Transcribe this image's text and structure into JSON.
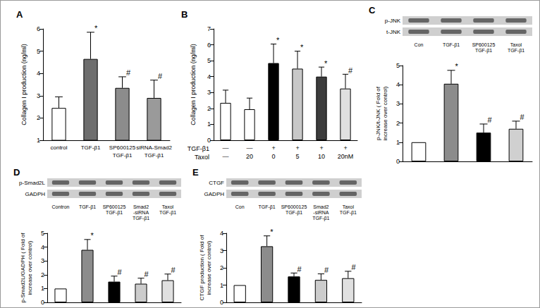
{
  "chart_data": [
    {
      "panel": "A",
      "type": "bar",
      "ylabel": "Collagen I production (ng/ml)",
      "categories": [
        "control",
        "TGF-β1",
        "SP600125\nTGF-β1",
        "siRNA-Smad2\nTGF-β1"
      ],
      "values": [
        2.45,
        4.65,
        3.35,
        2.9
      ],
      "errors": [
        0.5,
        1.2,
        0.5,
        0.8
      ],
      "annotations": [
        null,
        "*",
        "#",
        "#"
      ],
      "colors": [
        "#ffffff",
        "#6e6e6e",
        "#8c8c8c",
        "#9a9a9a"
      ],
      "ylim": [
        1,
        6
      ],
      "yticks": [
        1,
        2,
        3,
        4,
        5,
        6
      ],
      "grid": false
    },
    {
      "panel": "B",
      "type": "bar",
      "ylabel": "Collagen I production (ng/ml)",
      "x_rows": [
        {
          "name": "TGF-β1",
          "labels": [
            "—",
            "—",
            "+",
            "+",
            "+",
            "+"
          ]
        },
        {
          "name": "Taxol",
          "labels": [
            "—",
            "20",
            "0",
            "5",
            "10",
            "20nM"
          ]
        }
      ],
      "values": [
        2.35,
        1.95,
        4.85,
        4.5,
        4.0,
        3.25
      ],
      "errors": [
        0.8,
        0.7,
        1.2,
        1.1,
        0.6,
        0.9
      ],
      "annotations": [
        null,
        null,
        "*",
        "*",
        "*",
        "#"
      ],
      "colors": [
        "#ffffff",
        "#ffffff",
        "#000000",
        "#c8c8c8",
        "#3c3c3c",
        "#e0e0e0"
      ],
      "ylim": [
        0,
        7
      ],
      "yticks": [
        0,
        1,
        2,
        3,
        4,
        5,
        6,
        7
      ],
      "grid": false
    },
    {
      "panel": "C",
      "type": "bar",
      "blot": {
        "rows": [
          "p-JNK",
          "t-JNK"
        ],
        "lanes": [
          "Con",
          "TGF-β1",
          "SP600125\nTGF-β1",
          "Taxol\nTGF-β1"
        ]
      },
      "ylabel": "p-JNK/t-JNK ( Fold of\nincrease over control)",
      "categories": [
        null,
        null,
        null,
        null
      ],
      "values": [
        1,
        4.05,
        1.5,
        1.7
      ],
      "errors": [
        null,
        0.7,
        0.45,
        0.4
      ],
      "annotations": [
        null,
        "*",
        "#",
        "#"
      ],
      "colors": [
        "#ffffff",
        "#8c8c8c",
        "#000000",
        "#d0d0d0"
      ],
      "ylim": [
        0,
        5
      ],
      "yticks": [
        0,
        1,
        2,
        3,
        4,
        5
      ],
      "grid": false,
      "tick_labels": "y"
    },
    {
      "panel": "D",
      "type": "bar",
      "blot": {
        "rows": [
          "p-Smad2L",
          "GADPH"
        ],
        "lanes": [
          "Contron",
          "TGF-β1",
          "SP600125\nTGF-β1",
          "Smad2\n-siRNA\nTGF-β1",
          "Taxol\nTGF-β1"
        ]
      },
      "ylabel": "p-Smad2L/GADPH ( Fold of\nincrease over control)",
      "categories": [
        null,
        null,
        null,
        null,
        null
      ],
      "values": [
        1,
        3.8,
        1.5,
        1.35,
        1.6
      ],
      "errors": [
        null,
        0.75,
        0.4,
        0.4,
        0.45
      ],
      "annotations": [
        null,
        "*",
        "#",
        "#",
        "#"
      ],
      "colors": [
        "#ffffff",
        "#8c8c8c",
        "#000000",
        "#cccccc",
        "#e0e0e0"
      ],
      "ylim": [
        0,
        5
      ],
      "yticks": [
        0,
        1,
        2,
        3,
        4,
        5
      ],
      "grid": false,
      "tick_labels": "y"
    },
    {
      "panel": "E",
      "type": "bar",
      "blot": {
        "rows": [
          "CTGF",
          "GADPH"
        ],
        "lanes": [
          "Con",
          "TGF-β1",
          "SP6000125\nTGF-β1",
          "Smad2\n-siRNA\nTGF-β1",
          "Taxol\nTGF-β1"
        ]
      },
      "ylabel": "CTGF production ( Fold of\nincrease over control)",
      "categories": [
        null,
        null,
        null,
        null,
        null
      ],
      "values": [
        1,
        3.25,
        1.5,
        1.3,
        1.4
      ],
      "errors": [
        null,
        0.6,
        0.2,
        0.35,
        0.4
      ],
      "annotations": [
        null,
        "*",
        "#",
        "#",
        "#"
      ],
      "colors": [
        "#ffffff",
        "#8c8c8c",
        "#000000",
        "#cccccc",
        "#e0e0e0"
      ],
      "ylim": [
        0,
        4
      ],
      "yticks": [
        0,
        1,
        2,
        3,
        4
      ],
      "grid": false,
      "tick_labels": "y"
    }
  ]
}
